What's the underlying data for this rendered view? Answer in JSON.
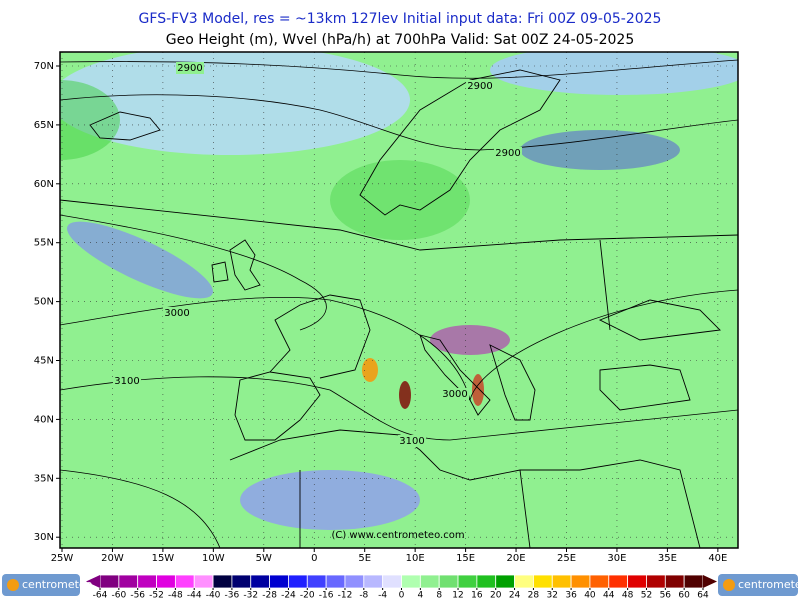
{
  "header": {
    "line1": "GFS-FV3 Model, res = ~13km 127lev    Initial input data: Fri 00Z 09-05-2025",
    "line2": "Geo Height (m), Wvel (hPa/h) at 700hPa  Valid: Sat 00Z 24-05-2025"
  },
  "map": {
    "lat_labels": [
      "70N",
      "65N",
      "60N",
      "55N",
      "50N",
      "45N",
      "40N",
      "35N",
      "30N"
    ],
    "lon_labels": [
      "25W",
      "20W",
      "15W",
      "10W",
      "5W",
      "0",
      "5E",
      "10E",
      "15E",
      "20E",
      "25E",
      "30E",
      "35E",
      "40E"
    ],
    "contour_labels": [
      "2900",
      "2900",
      "2900",
      "3000",
      "3100",
      "3000",
      "3100"
    ],
    "watermark": "(C) www.centrometeo.com"
  },
  "colorbar": {
    "ticks": [
      -64,
      -60,
      -56,
      -52,
      -48,
      -44,
      -40,
      -36,
      -32,
      -28,
      -24,
      -20,
      -16,
      -12,
      -8,
      -4,
      0,
      4,
      8,
      12,
      16,
      20,
      24,
      28,
      32,
      36,
      40,
      44,
      48,
      52,
      56,
      60,
      64
    ],
    "colors": [
      "#800080",
      "#a000a0",
      "#c000c0",
      "#e000e0",
      "#ff40ff",
      "#ff90ff",
      "#000040",
      "#000070",
      "#0000a0",
      "#0000d0",
      "#2020ff",
      "#4040ff",
      "#6868ff",
      "#9090ff",
      "#b8b8ff",
      "#e0e0ff",
      "#b0ffb0",
      "#90f090",
      "#70e070",
      "#40d040",
      "#20c020",
      "#00a000",
      "#ffff80",
      "#ffe000",
      "#ffc000",
      "#ff9000",
      "#ff6000",
      "#ff3000",
      "#e00000",
      "#b00000",
      "#800000",
      "#500000"
    ]
  },
  "logos": [
    "centrometeo",
    "centrometeo"
  ]
}
